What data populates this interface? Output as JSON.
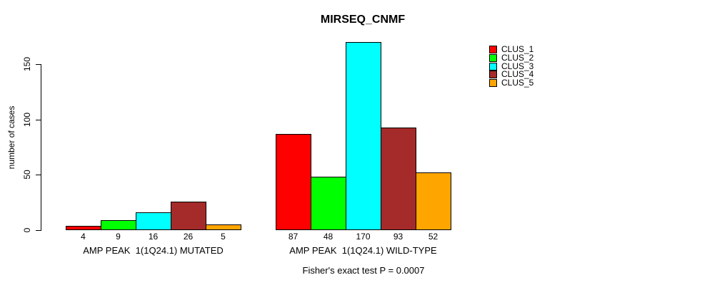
{
  "chart_data": {
    "type": "bar",
    "title": "MIRSEQ_CNMF",
    "ylabel": "number of cases",
    "yticks": [
      0,
      50,
      100,
      150
    ],
    "ylim": [
      0,
      175
    ],
    "grid": false,
    "legend_position": "top-right",
    "bar_value_labels": true,
    "groups": [
      "AMP PEAK  1(1Q24.1) MUTATED",
      "AMP PEAK  1(1Q24.1) WILD-TYPE"
    ],
    "series": [
      {
        "name": "CLUS_1",
        "color": "#FF0000",
        "values": [
          4,
          87
        ]
      },
      {
        "name": "CLUS_2",
        "color": "#00FF00",
        "values": [
          9,
          48
        ]
      },
      {
        "name": "CLUS_3",
        "color": "#00FFFF",
        "values": [
          16,
          170
        ]
      },
      {
        "name": "CLUS_4",
        "color": "#A52A2A",
        "values": [
          26,
          93
        ]
      },
      {
        "name": "CLUS_5",
        "color": "#FFA500",
        "values": [
          5,
          52
        ]
      }
    ],
    "annotation": "Fisher's exact test P = 0.0007"
  }
}
